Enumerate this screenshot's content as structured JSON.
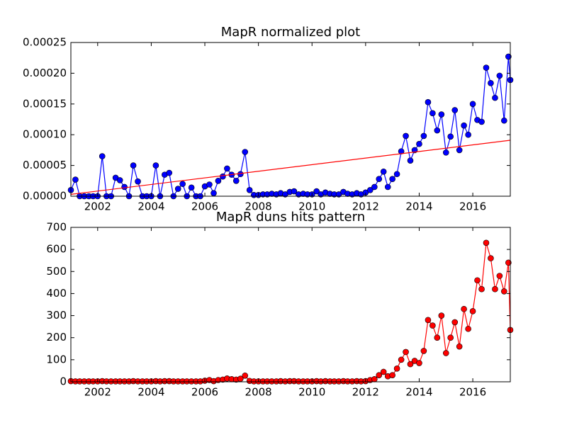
{
  "chart_data": [
    {
      "type": "line",
      "title": "MapR normalized plot",
      "x": [
        2001.0,
        2001.17,
        2001.33,
        2001.5,
        2001.67,
        2001.83,
        2002.0,
        2002.17,
        2002.33,
        2002.5,
        2002.67,
        2002.83,
        2003.0,
        2003.17,
        2003.33,
        2003.5,
        2003.67,
        2003.83,
        2004.0,
        2004.17,
        2004.33,
        2004.5,
        2004.67,
        2004.83,
        2005.0,
        2005.17,
        2005.33,
        2005.5,
        2005.67,
        2005.83,
        2006.0,
        2006.17,
        2006.33,
        2006.5,
        2006.67,
        2006.83,
        2007.0,
        2007.17,
        2007.33,
        2007.5,
        2007.67,
        2007.83,
        2008.0,
        2008.17,
        2008.33,
        2008.5,
        2008.67,
        2008.83,
        2009.0,
        2009.17,
        2009.33,
        2009.5,
        2009.67,
        2009.83,
        2010.0,
        2010.17,
        2010.33,
        2010.5,
        2010.67,
        2010.83,
        2011.0,
        2011.17,
        2011.33,
        2011.5,
        2011.67,
        2011.83,
        2012.0,
        2012.17,
        2012.33,
        2012.5,
        2012.67,
        2012.83,
        2013.0,
        2013.17,
        2013.33,
        2013.5,
        2013.67,
        2013.83,
        2014.0,
        2014.17,
        2014.33,
        2014.5,
        2014.67,
        2014.83,
        2015.0,
        2015.17,
        2015.33,
        2015.5,
        2015.67,
        2015.83,
        2016.0,
        2016.17,
        2016.33,
        2016.5,
        2016.67,
        2016.83,
        2017.0,
        2017.17,
        2017.33,
        2017.4
      ],
      "series": [
        {
          "color": "#0000ff",
          "marker": true,
          "values": [
            1e-05,
            2.7e-05,
            0,
            0,
            0,
            0,
            0,
            6.5e-05,
            0,
            0,
            3e-05,
            2.6e-05,
            1.5e-05,
            0,
            5e-05,
            2.4e-05,
            0,
            0,
            0,
            5e-05,
            0,
            3.5e-05,
            3.8e-05,
            0,
            1.2e-05,
            2e-05,
            0,
            1.4e-05,
            0,
            0,
            1.6e-05,
            1.9e-05,
            5e-06,
            2.5e-05,
            3.2e-05,
            4.5e-05,
            3.5e-05,
            2.5e-05,
            3.6e-05,
            7.2e-05,
            1e-05,
            2e-06,
            2e-06,
            3e-06,
            3e-06,
            4e-06,
            3e-06,
            5e-06,
            3e-06,
            7e-06,
            8e-06,
            3e-06,
            4e-06,
            3e-06,
            3e-06,
            8e-06,
            3e-06,
            6e-06,
            4e-06,
            3e-06,
            3e-06,
            7e-06,
            4e-06,
            3e-06,
            5e-06,
            3e-06,
            6e-06,
            1e-05,
            1.5e-05,
            2.8e-05,
            4e-05,
            1.5e-05,
            2.8e-05,
            3.6e-05,
            7.3e-05,
            9.8e-05,
            5.8e-05,
            7.5e-05,
            8.5e-05,
            9.8e-05,
            0.000153,
            0.000135,
            0.000107,
            0.000133,
            7.1e-05,
            9.7e-05,
            0.00014,
            7.5e-05,
            0.000115,
            0.0001,
            0.00015,
            0.000124,
            0.000121,
            0.000209,
            0.000184,
            0.00016,
            0.000196,
            0.000123,
            0.000227,
            0.000189
          ]
        },
        {
          "color": "#ff0000",
          "marker": false,
          "x": [
            2001.0,
            2017.4
          ],
          "values": [
            3e-06,
            9.1e-05
          ]
        }
      ],
      "xlim": [
        2001.0,
        2017.4
      ],
      "ylim": [
        0,
        0.00025
      ],
      "xticks": [
        2002,
        2004,
        2006,
        2008,
        2010,
        2012,
        2014,
        2016
      ],
      "yticks": [
        {
          "value": 0,
          "label": "0.00000"
        },
        {
          "value": 5e-05,
          "label": "0.00005"
        },
        {
          "value": 0.0001,
          "label": "0.00010"
        },
        {
          "value": 0.00015,
          "label": "0.00015"
        },
        {
          "value": 0.0002,
          "label": "0.00020"
        },
        {
          "value": 0.00025,
          "label": "0.00025"
        }
      ]
    },
    {
      "type": "line",
      "title": "MapR duns hits pattern",
      "x": [
        2001.0,
        2001.17,
        2001.33,
        2001.5,
        2001.67,
        2001.83,
        2002.0,
        2002.17,
        2002.33,
        2002.5,
        2002.67,
        2002.83,
        2003.0,
        2003.17,
        2003.33,
        2003.5,
        2003.67,
        2003.83,
        2004.0,
        2004.17,
        2004.33,
        2004.5,
        2004.67,
        2004.83,
        2005.0,
        2005.17,
        2005.33,
        2005.5,
        2005.67,
        2005.83,
        2006.0,
        2006.17,
        2006.33,
        2006.5,
        2006.67,
        2006.83,
        2007.0,
        2007.17,
        2007.33,
        2007.5,
        2007.67,
        2007.83,
        2008.0,
        2008.17,
        2008.33,
        2008.5,
        2008.67,
        2008.83,
        2009.0,
        2009.17,
        2009.33,
        2009.5,
        2009.67,
        2009.83,
        2010.0,
        2010.17,
        2010.33,
        2010.5,
        2010.67,
        2010.83,
        2011.0,
        2011.17,
        2011.33,
        2011.5,
        2011.67,
        2011.83,
        2012.0,
        2012.17,
        2012.33,
        2012.5,
        2012.67,
        2012.83,
        2013.0,
        2013.17,
        2013.33,
        2013.5,
        2013.67,
        2013.83,
        2014.0,
        2014.17,
        2014.33,
        2014.5,
        2014.67,
        2014.83,
        2015.0,
        2015.17,
        2015.33,
        2015.5,
        2015.67,
        2015.83,
        2016.0,
        2016.17,
        2016.33,
        2016.5,
        2016.67,
        2016.83,
        2017.0,
        2017.17,
        2017.33,
        2017.4
      ],
      "series": [
        {
          "color": "#ff0000",
          "marker": true,
          "values": [
            3,
            2,
            2,
            2,
            2,
            2,
            2,
            3,
            2,
            2,
            2,
            2,
            2,
            2,
            3,
            2,
            2,
            2,
            2,
            3,
            2,
            3,
            3,
            2,
            2,
            2,
            2,
            2,
            2,
            2,
            5,
            8,
            3,
            8,
            10,
            15,
            12,
            10,
            14,
            28,
            4,
            2,
            2,
            2,
            2,
            2,
            2,
            3,
            2,
            3,
            3,
            2,
            2,
            2,
            2,
            3,
            2,
            3,
            2,
            2,
            2,
            3,
            2,
            2,
            3,
            2,
            3,
            8,
            12,
            30,
            45,
            25,
            30,
            60,
            100,
            135,
            80,
            95,
            85,
            140,
            280,
            255,
            200,
            300,
            130,
            200,
            270,
            160,
            330,
            240,
            320,
            460,
            420,
            630,
            560,
            420,
            480,
            410,
            540,
            235
          ]
        }
      ],
      "xlim": [
        2001.0,
        2017.4
      ],
      "ylim": [
        0,
        700
      ],
      "xticks": [
        2002,
        2004,
        2006,
        2008,
        2010,
        2012,
        2014,
        2016
      ],
      "yticks": [
        0,
        100,
        200,
        300,
        400,
        500,
        600,
        700
      ]
    }
  ]
}
